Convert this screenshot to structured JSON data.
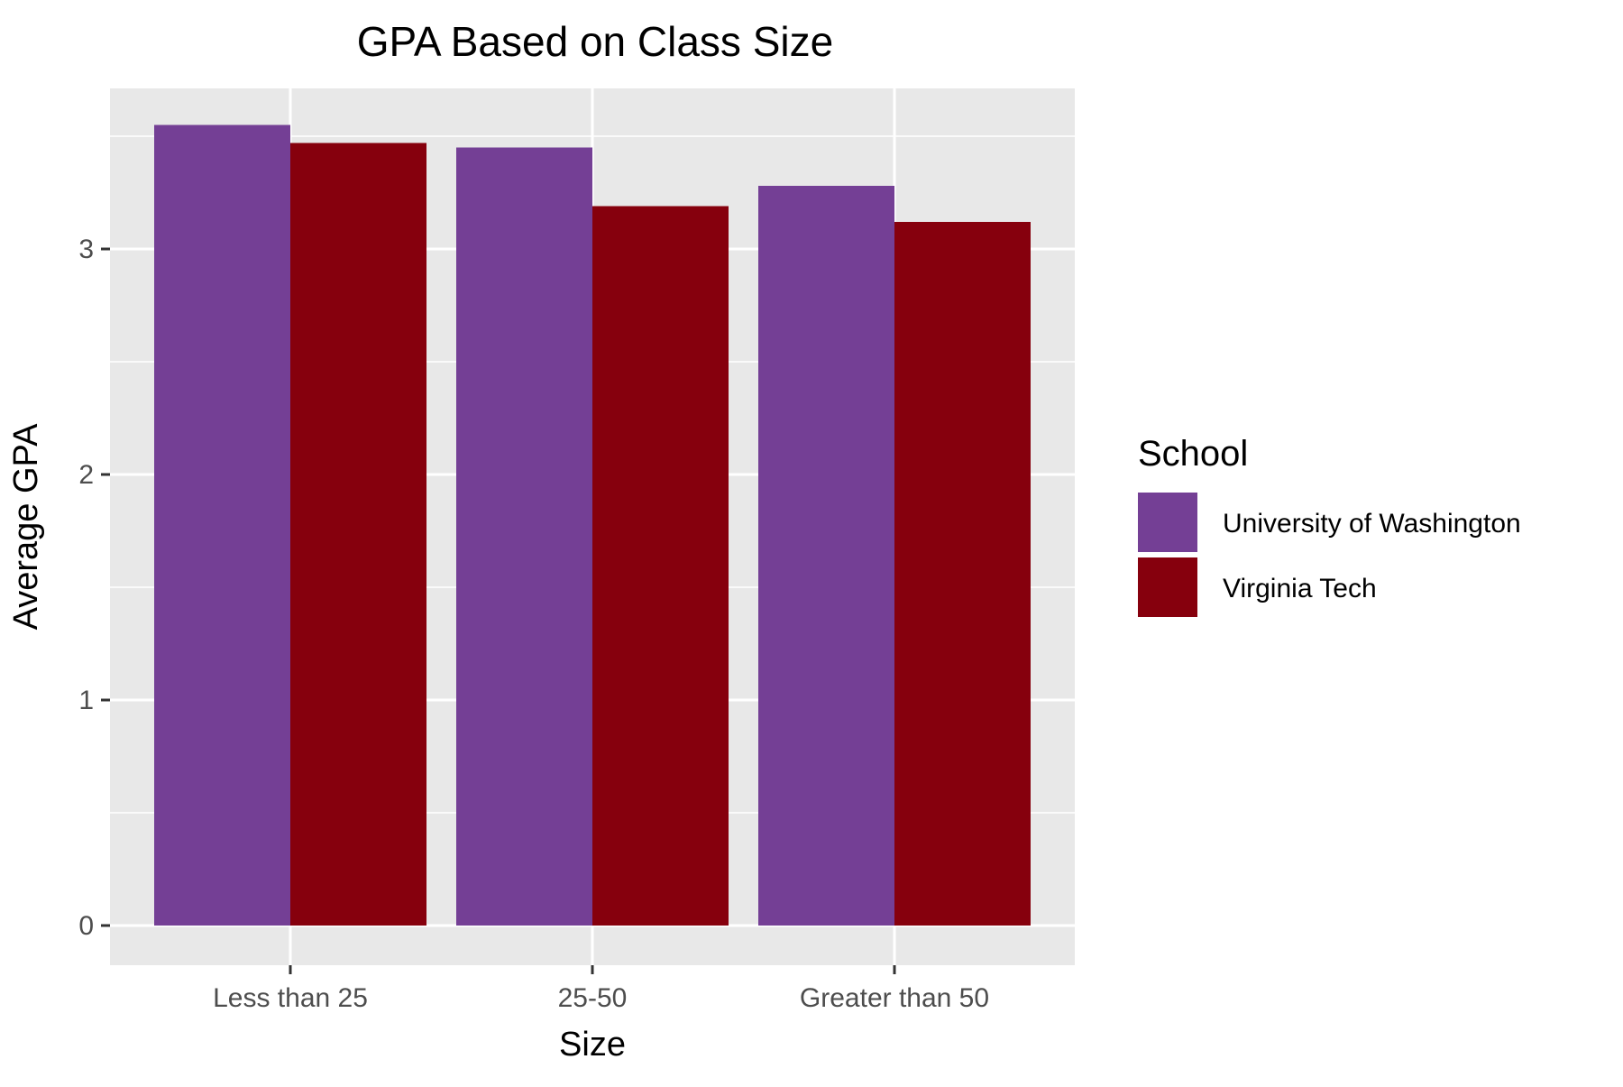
{
  "chart_data": {
    "type": "bar",
    "title": "GPA Based on Class Size",
    "xlabel": "Size",
    "ylabel": "Average GPA",
    "categories": [
      "Less than 25",
      "25-50",
      "Greater than 50"
    ],
    "series": [
      {
        "name": "University of Washington",
        "color": "#743F95",
        "values": [
          3.55,
          3.45,
          3.28
        ]
      },
      {
        "name": "Virginia Tech",
        "color": "#86000D",
        "values": [
          3.47,
          3.19,
          3.12
        ]
      }
    ],
    "ylim": [
      0,
      3.55
    ],
    "yticks": [
      "0",
      "1",
      "2",
      "3"
    ],
    "legend": {
      "title": "School",
      "placement": "right"
    },
    "grid": true,
    "panel_background": "#E8E8E8",
    "grid_color": "#FFFFFF"
  }
}
